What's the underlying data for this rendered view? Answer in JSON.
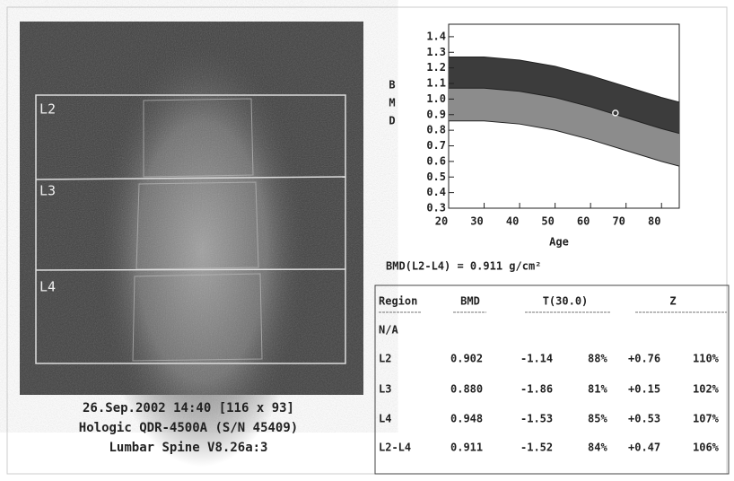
{
  "scan": {
    "regions": [
      "L2",
      "L3",
      "L4"
    ],
    "caption": [
      "26.Sep.2002 14:40 [116 x 93]",
      "Hologic QDR-4500A (S/N 45409)",
      "Lumbar Spine V8.26a:3"
    ]
  },
  "chart_data": {
    "type": "band",
    "y_label_letters": [
      "B",
      "M",
      "D"
    ],
    "x_label": "Age",
    "x": [
      20,
      30,
      40,
      50,
      60,
      70,
      80,
      85
    ],
    "bands": [
      {
        "color": "#3c3c3c",
        "values": [
          1.27,
          1.27,
          1.25,
          1.21,
          1.15,
          1.08,
          1.01,
          0.98
        ]
      },
      {
        "color": "#8c8c8c",
        "values": [
          1.07,
          1.07,
          1.05,
          1.01,
          0.95,
          0.88,
          0.81,
          0.78
        ]
      },
      {
        "values": [
          0.86,
          0.86,
          0.84,
          0.8,
          0.74,
          0.67,
          0.6,
          0.57
        ]
      }
    ],
    "point": {
      "x": 67,
      "y": 0.911
    },
    "xlim": [
      20,
      85
    ],
    "ylim": [
      0.3,
      1.48
    ],
    "xticks": [
      20,
      30,
      40,
      50,
      60,
      70,
      80
    ],
    "yticks": [
      1.4,
      1.3,
      1.2,
      1.1,
      {
        "value": 1.0,
        "label": "1.0"
      },
      0.9,
      0.8,
      0.7,
      0.6,
      0.5,
      0.4,
      0.3
    ]
  },
  "summary": "BMD(L2-L4) = 0.911 g/cm²",
  "table": {
    "header": [
      "Region",
      "BMD",
      "T(30.0)",
      "Z"
    ],
    "rows": [
      [
        "N/A"
      ],
      [
        "L2",
        "0.902",
        "-1.14",
        "88%",
        "+0.76",
        "110%"
      ],
      [
        "L3",
        "0.880",
        "-1.86",
        "81%",
        "+0.15",
        "102%"
      ],
      [
        "L4",
        "0.948",
        "-1.53",
        "85%",
        "+0.53",
        "107%"
      ],
      [
        "L2-L4",
        "0.911",
        "-1.52",
        "84%",
        "+0.47",
        "106%"
      ]
    ]
  }
}
